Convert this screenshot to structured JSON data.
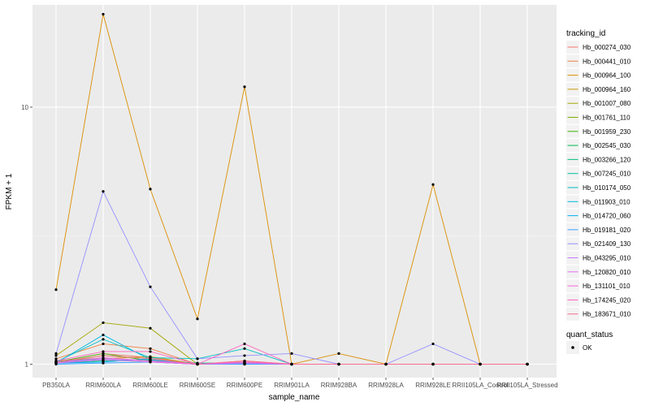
{
  "chart_data": {
    "type": "line",
    "xlabel": "sample_name",
    "ylabel": "FPKM + 1",
    "y_scale": "log10",
    "ylim": [
      1,
      25
    ],
    "y_ticks": [
      {
        "value": 1,
        "label": "1"
      },
      {
        "value": 10,
        "label": "10"
      }
    ],
    "grid": true,
    "legend_position": "right",
    "categories": [
      "PB350LA",
      "RRIM600LA",
      "RRIM600LE",
      "RRIM600SE",
      "RRIM600PE",
      "RRIM901LA",
      "RRIM928BA",
      "RRIM928LA",
      "RRIM928LE",
      "RRII105LA_Control",
      "RRII105LA_Stressed"
    ],
    "legend_title": "tracking_id",
    "series": [
      {
        "name": "Hb_000274_030",
        "color": "#F8766D",
        "values": [
          1.02,
          1.1,
          1.06,
          1.0,
          1.03,
          1.0,
          1.0,
          1.0,
          1.0,
          1.0,
          1.0
        ]
      },
      {
        "name": "Hb_000441_010",
        "color": "#EE8043",
        "values": [
          1.05,
          1.2,
          1.15,
          1.0,
          1.02,
          1.0,
          1.0,
          1.0,
          1.0,
          1.0,
          1.0
        ]
      },
      {
        "name": "Hb_000964_100",
        "color": "#DC8E00",
        "values": [
          1.95,
          23.0,
          4.8,
          1.5,
          12.0,
          1.0,
          1.1,
          1.0,
          5.0,
          1.0,
          1.0
        ]
      },
      {
        "name": "Hb_000964_160",
        "color": "#C59900",
        "values": [
          1.03,
          1.05,
          1.07,
          1.0,
          1.02,
          1.0,
          1.0,
          1.0,
          1.0,
          1.0,
          1.0
        ]
      },
      {
        "name": "Hb_001007_080",
        "color": "#A3A500",
        "values": [
          1.08,
          1.45,
          1.38,
          1.0,
          1.02,
          1.0,
          1.0,
          1.0,
          1.0,
          1.0,
          1.0
        ]
      },
      {
        "name": "Hb_001761_110",
        "color": "#7CAE00",
        "values": [
          1.01,
          1.08,
          1.05,
          1.0,
          1.01,
          1.0,
          1.0,
          1.0,
          1.0,
          1.0,
          1.0
        ]
      },
      {
        "name": "Hb_001959_230",
        "color": "#39B600",
        "values": [
          1.02,
          1.1,
          1.03,
          1.0,
          1.01,
          1.0,
          1.0,
          1.0,
          1.0,
          1.0,
          1.0
        ]
      },
      {
        "name": "Hb_002545_030",
        "color": "#00BB4E",
        "values": [
          1.01,
          1.04,
          1.02,
          1.0,
          1.0,
          1.0,
          1.0,
          1.0,
          1.0,
          1.0,
          1.0
        ]
      },
      {
        "name": "Hb_003266_120",
        "color": "#00BF7D",
        "values": [
          1.01,
          1.03,
          1.04,
          1.0,
          1.0,
          1.0,
          1.0,
          1.0,
          1.0,
          1.0,
          1.0
        ]
      },
      {
        "name": "Hb_007245_010",
        "color": "#00C1A3",
        "values": [
          1.02,
          1.05,
          1.03,
          1.01,
          1.01,
          1.0,
          1.0,
          1.0,
          1.0,
          1.0,
          1.0
        ]
      },
      {
        "name": "Hb_010174_050",
        "color": "#00BFC4",
        "values": [
          1.02,
          1.25,
          1.06,
          1.05,
          1.15,
          1.0,
          1.0,
          1.0,
          1.0,
          1.0,
          1.0
        ]
      },
      {
        "name": "Hb_011903_010",
        "color": "#00BAE0",
        "values": [
          1.01,
          1.3,
          1.04,
          1.0,
          1.01,
          1.0,
          1.0,
          1.0,
          1.0,
          1.0,
          1.0
        ]
      },
      {
        "name": "Hb_014720_060",
        "color": "#00B0F6",
        "values": [
          1.01,
          1.02,
          1.05,
          1.0,
          1.0,
          1.0,
          1.0,
          1.0,
          1.0,
          1.0,
          1.0
        ]
      },
      {
        "name": "Hb_019181_020",
        "color": "#35A2FF",
        "values": [
          1.0,
          1.01,
          1.02,
          1.0,
          1.0,
          1.0,
          1.0,
          1.0,
          1.0,
          1.0,
          1.0
        ]
      },
      {
        "name": "Hb_021409_130",
        "color": "#9590FF",
        "values": [
          1.1,
          4.7,
          2.0,
          1.05,
          1.08,
          1.1,
          1.0,
          1.0,
          1.2,
          1.0,
          1.0
        ]
      },
      {
        "name": "Hb_043295_010",
        "color": "#C77CFF",
        "values": [
          1.01,
          1.05,
          1.03,
          1.0,
          1.01,
          1.0,
          1.0,
          1.0,
          1.0,
          1.0,
          1.0
        ]
      },
      {
        "name": "Hb_120820_010",
        "color": "#E76BF3",
        "values": [
          1.01,
          1.04,
          1.02,
          1.0,
          1.01,
          1.0,
          1.0,
          1.0,
          1.0,
          1.0,
          1.0
        ]
      },
      {
        "name": "Hb_131101_010",
        "color": "#FA62DB",
        "values": [
          1.02,
          1.06,
          1.03,
          1.0,
          1.02,
          1.0,
          1.0,
          1.0,
          1.0,
          1.0,
          1.0
        ]
      },
      {
        "name": "Hb_174245_020",
        "color": "#FF62BC",
        "values": [
          1.03,
          1.12,
          1.12,
          1.0,
          1.2,
          1.0,
          1.0,
          1.0,
          1.0,
          1.0,
          1.0
        ]
      },
      {
        "name": "Hb_183671_010",
        "color": "#FF6C91",
        "values": [
          1.02,
          1.08,
          1.05,
          1.0,
          1.03,
          1.0,
          1.0,
          1.0,
          1.0,
          1.0,
          1.0
        ]
      }
    ],
    "point_legend": {
      "title": "quant_status",
      "label": "OK",
      "color": "#000000"
    }
  }
}
